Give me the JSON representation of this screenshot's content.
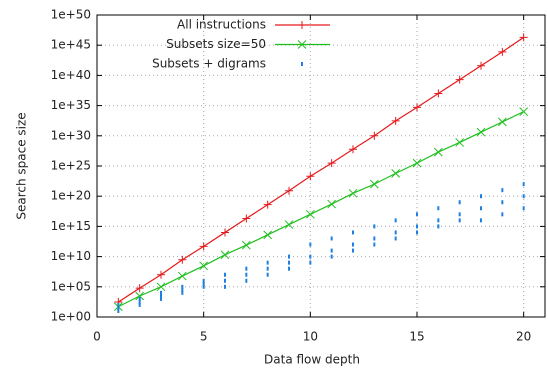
{
  "chart_data": {
    "type": "line",
    "xlabel": "Data flow depth",
    "ylabel": "Search space size",
    "xlim": [
      0,
      21
    ],
    "xticks": [
      0,
      5,
      10,
      15,
      20
    ],
    "ylim": [
      1,
      1e+50
    ],
    "yscale": "log",
    "yticks": [
      {
        "value": 1,
        "label": "1e+00"
      },
      {
        "value": 100000.0,
        "label": "1e+05"
      },
      {
        "value": 10000000000.0,
        "label": "1e+10"
      },
      {
        "value": 1000000000000000.0,
        "label": "1e+15"
      },
      {
        "value": 1e+20,
        "label": "1e+20"
      },
      {
        "value": 1e+25,
        "label": "1e+25"
      },
      {
        "value": 1e+30,
        "label": "1e+30"
      },
      {
        "value": 1e+35,
        "label": "1e+35"
      },
      {
        "value": 1e+40,
        "label": "1e+40"
      },
      {
        "value": 1e+45,
        "label": "1e+45"
      },
      {
        "value": 1e+50,
        "label": "1e+50"
      }
    ],
    "grid": true,
    "legend": "top-left",
    "series": [
      {
        "name": "All instructions",
        "color": "#e41a1c",
        "marker": "+",
        "line": true,
        "x": [
          1,
          2,
          3,
          4,
          5,
          6,
          7,
          8,
          9,
          10,
          11,
          12,
          13,
          14,
          15,
          16,
          17,
          18,
          19,
          20
        ],
        "values": [
          300.0,
          60000.0,
          10000000.0,
          3000000000.0,
          500000000000.0,
          100000000000000.0,
          2e+16,
          4e+18,
          8e+20,
          2e+23,
          3e+25,
          6e+27,
          1e+30,
          3e+32,
          5e+34,
          1e+37,
          2e+39,
          4e+41,
          8e+43,
          2e+46
        ]
      },
      {
        "name": "Subsets size=50",
        "color": "#1fbf1f",
        "marker": "x",
        "line": true,
        "x": [
          1,
          2,
          3,
          4,
          5,
          6,
          7,
          8,
          9,
          10,
          11,
          12,
          13,
          14,
          15,
          16,
          17,
          18,
          19,
          20
        ],
        "values": [
          50.0,
          3000.0,
          100000.0,
          6000000.0,
          300000000.0,
          20000000000.0,
          800000000000.0,
          40000000000000.0,
          2000000000000000.0,
          1e+17,
          5e+18,
          3e+20,
          1e+22,
          6e+23,
          3e+25,
          2e+27,
          8e+28,
          4e+30,
          2e+32,
          1e+34
        ]
      },
      {
        "name": "Subsets + digrams",
        "color": "#1e7fe0",
        "marker": "dot",
        "line": false,
        "x": [
          1,
          1,
          1,
          2,
          2,
          2,
          3,
          3,
          3,
          4,
          4,
          4,
          5,
          5,
          5,
          6,
          6,
          6,
          7,
          7,
          7,
          8,
          8,
          8,
          9,
          9,
          9,
          10,
          10,
          10,
          11,
          11,
          11,
          12,
          12,
          12,
          13,
          13,
          13,
          14,
          14,
          14,
          15,
          15,
          15,
          16,
          16,
          16,
          17,
          17,
          17,
          18,
          18,
          18,
          19,
          19,
          19,
          20,
          20,
          20
        ],
        "values": [
          10.0,
          30.0,
          100.0,
          100.0,
          300.0,
          1000.0,
          1000.0,
          3000.0,
          10000.0,
          10000.0,
          30000.0,
          100000.0,
          100000.0,
          300000.0,
          1000000.0,
          100000.0,
          1000000.0,
          10000000.0,
          1000000.0,
          10000000.0,
          100000000.0,
          10000000.0,
          100000000.0,
          1000000000.0,
          100000000.0,
          1000000000.0,
          10000000000.0,
          1000000000.0,
          10000000000.0,
          1000000000000.0,
          10000000000.0,
          100000000000.0,
          10000000000000.0,
          100000000000.0,
          1000000000000.0,
          100000000000000.0,
          1000000000000.0,
          10000000000000.0,
          1000000000000000.0,
          10000000000000.0,
          100000000000000.0,
          1e+16,
          100000000000000.0,
          1000000000000000.0,
          1e+17,
          1000000000000000.0,
          1e+16,
          1e+18,
          1e+16,
          1e+17,
          1e+19,
          1e+16,
          1e+18,
          1e+20,
          1e+17,
          1e+19,
          1e+21,
          1e+18,
          1e+20,
          1e+22
        ]
      }
    ]
  }
}
